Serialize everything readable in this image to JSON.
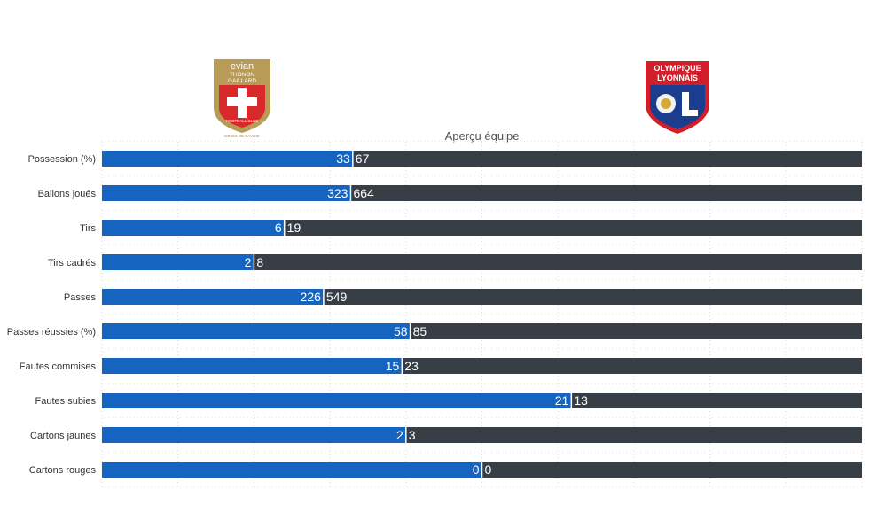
{
  "teams": {
    "home": {
      "name_line1": "evian",
      "name_line2": "THONON",
      "name_line3": "GAILLARD",
      "badge_text": "FOOTBALL CLUB",
      "bottom_text": "CROIX DE SAVOIE",
      "color": "#1565c0",
      "crest_gold": "#b79b56",
      "crest_red": "#d82a2a"
    },
    "away": {
      "name_line1": "OLYMPIQUE",
      "name_line2": "LYONNAIS",
      "color": "#383e45",
      "crest_red": "#d01f2a",
      "crest_blue": "#1a3d8f"
    }
  },
  "chart_data": {
    "type": "bar",
    "orientation": "horizontal",
    "stacked": "normalized",
    "title": "Aperçu équipe",
    "categories": [
      "Possession (%)",
      "Ballons joués",
      "Tirs",
      "Tirs cadrés",
      "Passes",
      "Passes réussies (%)",
      "Fautes commises",
      "Fautes subies",
      "Cartons jaunes",
      "Cartons rouges"
    ],
    "series": [
      {
        "values": [
          33,
          323,
          6,
          2,
          226,
          58,
          15,
          21,
          2,
          0
        ],
        "color": "#1565c0"
      },
      {
        "values": [
          67,
          664,
          19,
          8,
          549,
          85,
          23,
          13,
          3,
          0
        ],
        "color": "#383e45"
      }
    ],
    "grid": true
  }
}
